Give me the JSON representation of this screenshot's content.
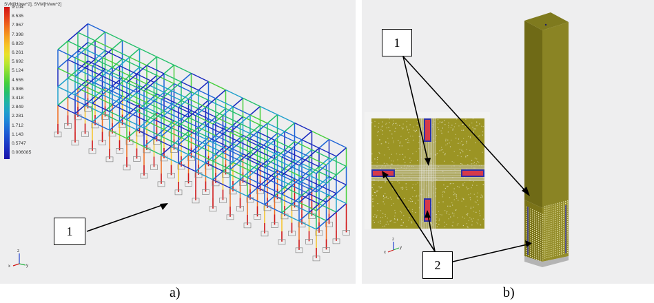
{
  "panel_a": {
    "legend_title": "SVM[H/мм^2], SVM[H/мм^2]",
    "legend_values": [
      "9.104",
      "8.535",
      "7.967",
      "7.398",
      "6.829",
      "6.261",
      "5.692",
      "5.124",
      "4.555",
      "3.986",
      "3.418",
      "2.849",
      "2.281",
      "1.712",
      "1.143",
      "0.5747",
      "0.006085"
    ],
    "legend_colors": [
      "#d11414",
      "#e33a1a",
      "#f06a1c",
      "#f59a1f",
      "#f7c224",
      "#e8e22a",
      "#b8e630",
      "#7ddc34",
      "#45cf3c",
      "#25c06b",
      "#20b4a5",
      "#1fa0cc",
      "#1e86d8",
      "#1e64d6",
      "#1c46cc",
      "#1a2abf",
      "#1a14a8"
    ],
    "callout": "1",
    "caption": "a)",
    "axis_labels": {
      "z": "z",
      "y": "y",
      "x": "x"
    }
  },
  "panel_b": {
    "callout_1": "1",
    "callout_2": "2",
    "caption": "b)",
    "axis_labels": {
      "z": "z",
      "y": "y",
      "x": "x"
    }
  }
}
